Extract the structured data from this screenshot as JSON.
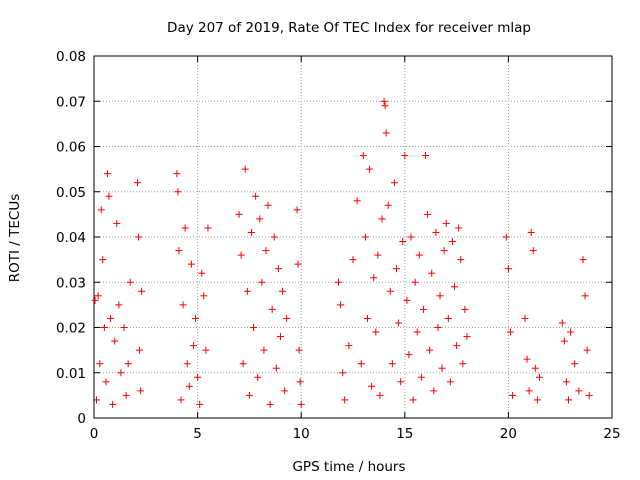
{
  "chart_data": {
    "type": "scatter",
    "title": "Day 207 of 2019, Rate Of TEC Index for receiver mlap",
    "xlabel": "GPS time / hours",
    "ylabel": "ROTI / TECUs",
    "xlim": [
      0,
      25
    ],
    "ylim": [
      0,
      0.08
    ],
    "x_ticks": [
      0,
      5,
      10,
      15,
      20,
      25
    ],
    "x_tick_labels": [
      "0",
      "5",
      "10",
      "15",
      "20",
      "25"
    ],
    "y_ticks": [
      0,
      0.01,
      0.02,
      0.03,
      0.04,
      0.05,
      0.06,
      0.07,
      0.08
    ],
    "y_tick_labels": [
      "0",
      "0.01",
      "0.02",
      "0.03",
      "0.04",
      "0.05",
      "0.06",
      "0.07",
      "0.08"
    ],
    "grid": true,
    "marker": "plus",
    "color": "#ff0000",
    "series": [
      {
        "x": [
          0.05,
          0.12,
          0.2,
          0.28,
          0.35,
          0.42,
          0.5,
          0.58,
          0.65,
          0.72,
          0.8,
          0.9,
          1.0,
          1.1,
          1.2,
          1.3,
          1.45,
          1.55,
          1.65,
          1.75,
          2.1,
          2.15,
          2.2,
          2.25,
          2.3,
          4.0,
          4.05,
          4.1,
          4.2,
          4.3,
          4.4,
          4.5,
          4.6,
          4.7,
          4.8,
          4.9,
          5.0,
          5.1,
          5.2,
          5.3,
          5.4,
          5.5,
          7.0,
          7.1,
          7.2,
          7.3,
          7.4,
          7.5,
          7.6,
          7.7,
          7.8,
          7.9,
          8.0,
          8.1,
          8.2,
          8.3,
          8.4,
          8.5,
          8.6,
          8.7,
          8.8,
          8.9,
          9.0,
          9.1,
          9.2,
          9.3,
          9.8,
          9.85,
          9.9,
          9.95,
          10.0,
          11.8,
          11.9,
          12.0,
          12.1,
          12.3,
          12.5,
          12.7,
          12.9,
          13.0,
          13.1,
          13.2,
          13.3,
          13.4,
          13.5,
          13.6,
          13.7,
          13.8,
          13.9,
          14.0,
          14.05,
          14.1,
          14.2,
          14.3,
          14.4,
          14.5,
          14.6,
          14.7,
          14.8,
          14.9,
          15.0,
          15.1,
          15.2,
          15.3,
          15.4,
          15.5,
          15.6,
          15.7,
          15.8,
          15.9,
          16.0,
          16.1,
          16.2,
          16.3,
          16.4,
          16.5,
          16.6,
          16.7,
          16.8,
          16.9,
          17.0,
          17.1,
          17.2,
          17.3,
          17.4,
          17.5,
          17.6,
          17.7,
          17.8,
          17.9,
          18.0,
          19.9,
          20.0,
          20.1,
          20.2,
          20.8,
          20.9,
          21.0,
          21.1,
          21.2,
          21.3,
          21.4,
          21.5,
          22.6,
          22.7,
          22.8,
          22.9,
          23.0,
          23.2,
          23.4,
          23.6,
          23.7,
          23.8,
          23.9
        ],
        "y": [
          0.026,
          0.004,
          0.027,
          0.012,
          0.046,
          0.035,
          0.02,
          0.008,
          0.054,
          0.049,
          0.022,
          0.003,
          0.017,
          0.043,
          0.025,
          0.01,
          0.02,
          0.005,
          0.012,
          0.03,
          0.052,
          0.04,
          0.015,
          0.006,
          0.028,
          0.054,
          0.05,
          0.037,
          0.004,
          0.025,
          0.042,
          0.012,
          0.007,
          0.034,
          0.016,
          0.022,
          0.009,
          0.003,
          0.032,
          0.027,
          0.015,
          0.042,
          0.045,
          0.036,
          0.012,
          0.055,
          0.028,
          0.005,
          0.041,
          0.02,
          0.049,
          0.009,
          0.044,
          0.03,
          0.015,
          0.037,
          0.047,
          0.003,
          0.024,
          0.04,
          0.011,
          0.033,
          0.018,
          0.028,
          0.006,
          0.022,
          0.046,
          0.034,
          0.015,
          0.008,
          0.003,
          0.03,
          0.025,
          0.01,
          0.004,
          0.016,
          0.035,
          0.048,
          0.012,
          0.058,
          0.04,
          0.022,
          0.055,
          0.007,
          0.031,
          0.019,
          0.036,
          0.005,
          0.044,
          0.07,
          0.069,
          0.063,
          0.047,
          0.028,
          0.012,
          0.052,
          0.033,
          0.021,
          0.008,
          0.039,
          0.058,
          0.026,
          0.014,
          0.04,
          0.004,
          0.03,
          0.019,
          0.036,
          0.009,
          0.024,
          0.058,
          0.045,
          0.015,
          0.032,
          0.006,
          0.041,
          0.02,
          0.027,
          0.011,
          0.037,
          0.043,
          0.022,
          0.008,
          0.039,
          0.029,
          0.016,
          0.042,
          0.035,
          0.012,
          0.024,
          0.018,
          0.04,
          0.033,
          0.019,
          0.005,
          0.022,
          0.013,
          0.006,
          0.041,
          0.037,
          0.011,
          0.004,
          0.009,
          0.021,
          0.017,
          0.008,
          0.004,
          0.019,
          0.012,
          0.006,
          0.035,
          0.027,
          0.015,
          0.005
        ]
      }
    ]
  }
}
